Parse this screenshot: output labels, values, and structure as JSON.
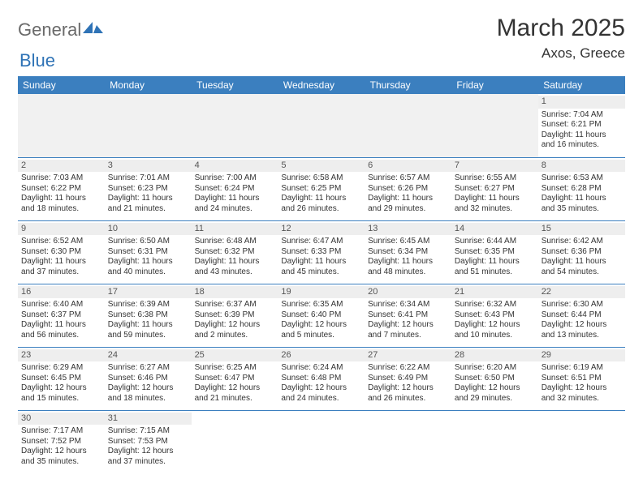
{
  "brand": {
    "part1": "General",
    "part2": "Blue"
  },
  "title": "March 2025",
  "location": "Axos, Greece",
  "colors": {
    "header_bg": "#3b7fbf",
    "header_text": "#ffffff",
    "brand_gray": "#6a6a6a",
    "brand_blue": "#2f73b6",
    "daynum_bg": "#eeeeee",
    "border": "#3b7fbf",
    "blank_row_bg": "#f1f1f1"
  },
  "weekdays": [
    "Sunday",
    "Monday",
    "Tuesday",
    "Wednesday",
    "Thursday",
    "Friday",
    "Saturday"
  ],
  "cells": [
    [
      null,
      null,
      null,
      null,
      null,
      null,
      {
        "d": "1",
        "sr": "7:04 AM",
        "ss": "6:21 PM",
        "dh": "11",
        "dm": "16"
      }
    ],
    [
      {
        "d": "2",
        "sr": "7:03 AM",
        "ss": "6:22 PM",
        "dh": "11",
        "dm": "18"
      },
      {
        "d": "3",
        "sr": "7:01 AM",
        "ss": "6:23 PM",
        "dh": "11",
        "dm": "21"
      },
      {
        "d": "4",
        "sr": "7:00 AM",
        "ss": "6:24 PM",
        "dh": "11",
        "dm": "24"
      },
      {
        "d": "5",
        "sr": "6:58 AM",
        "ss": "6:25 PM",
        "dh": "11",
        "dm": "26"
      },
      {
        "d": "6",
        "sr": "6:57 AM",
        "ss": "6:26 PM",
        "dh": "11",
        "dm": "29"
      },
      {
        "d": "7",
        "sr": "6:55 AM",
        "ss": "6:27 PM",
        "dh": "11",
        "dm": "32"
      },
      {
        "d": "8",
        "sr": "6:53 AM",
        "ss": "6:28 PM",
        "dh": "11",
        "dm": "35"
      }
    ],
    [
      {
        "d": "9",
        "sr": "6:52 AM",
        "ss": "6:30 PM",
        "dh": "11",
        "dm": "37"
      },
      {
        "d": "10",
        "sr": "6:50 AM",
        "ss": "6:31 PM",
        "dh": "11",
        "dm": "40"
      },
      {
        "d": "11",
        "sr": "6:48 AM",
        "ss": "6:32 PM",
        "dh": "11",
        "dm": "43"
      },
      {
        "d": "12",
        "sr": "6:47 AM",
        "ss": "6:33 PM",
        "dh": "11",
        "dm": "45"
      },
      {
        "d": "13",
        "sr": "6:45 AM",
        "ss": "6:34 PM",
        "dh": "11",
        "dm": "48"
      },
      {
        "d": "14",
        "sr": "6:44 AM",
        "ss": "6:35 PM",
        "dh": "11",
        "dm": "51"
      },
      {
        "d": "15",
        "sr": "6:42 AM",
        "ss": "6:36 PM",
        "dh": "11",
        "dm": "54"
      }
    ],
    [
      {
        "d": "16",
        "sr": "6:40 AM",
        "ss": "6:37 PM",
        "dh": "11",
        "dm": "56"
      },
      {
        "d": "17",
        "sr": "6:39 AM",
        "ss": "6:38 PM",
        "dh": "11",
        "dm": "59"
      },
      {
        "d": "18",
        "sr": "6:37 AM",
        "ss": "6:39 PM",
        "dh": "12",
        "dm": "2"
      },
      {
        "d": "19",
        "sr": "6:35 AM",
        "ss": "6:40 PM",
        "dh": "12",
        "dm": "5"
      },
      {
        "d": "20",
        "sr": "6:34 AM",
        "ss": "6:41 PM",
        "dh": "12",
        "dm": "7"
      },
      {
        "d": "21",
        "sr": "6:32 AM",
        "ss": "6:43 PM",
        "dh": "12",
        "dm": "10"
      },
      {
        "d": "22",
        "sr": "6:30 AM",
        "ss": "6:44 PM",
        "dh": "12",
        "dm": "13"
      }
    ],
    [
      {
        "d": "23",
        "sr": "6:29 AM",
        "ss": "6:45 PM",
        "dh": "12",
        "dm": "15"
      },
      {
        "d": "24",
        "sr": "6:27 AM",
        "ss": "6:46 PM",
        "dh": "12",
        "dm": "18"
      },
      {
        "d": "25",
        "sr": "6:25 AM",
        "ss": "6:47 PM",
        "dh": "12",
        "dm": "21"
      },
      {
        "d": "26",
        "sr": "6:24 AM",
        "ss": "6:48 PM",
        "dh": "12",
        "dm": "24"
      },
      {
        "d": "27",
        "sr": "6:22 AM",
        "ss": "6:49 PM",
        "dh": "12",
        "dm": "26"
      },
      {
        "d": "28",
        "sr": "6:20 AM",
        "ss": "6:50 PM",
        "dh": "12",
        "dm": "29"
      },
      {
        "d": "29",
        "sr": "6:19 AM",
        "ss": "6:51 PM",
        "dh": "12",
        "dm": "32"
      }
    ],
    [
      {
        "d": "30",
        "sr": "7:17 AM",
        "ss": "7:52 PM",
        "dh": "12",
        "dm": "35"
      },
      {
        "d": "31",
        "sr": "7:15 AM",
        "ss": "7:53 PM",
        "dh": "12",
        "dm": "37"
      },
      null,
      null,
      null,
      null,
      null
    ]
  ]
}
